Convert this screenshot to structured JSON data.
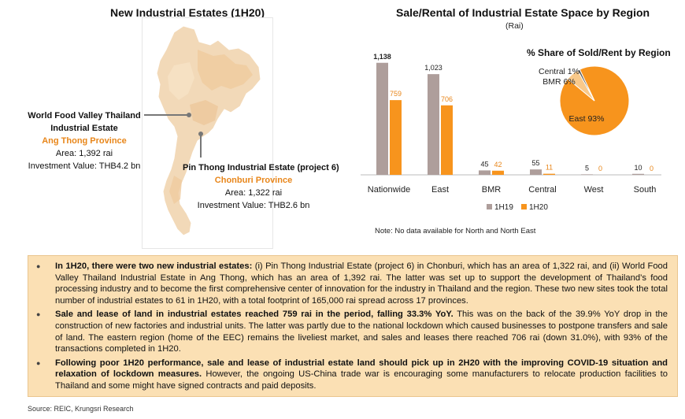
{
  "left_panel": {
    "title": "New Industrial Estates (1H20)",
    "estate1": {
      "name_line1": "World Food Valley Thailand",
      "name_line2": "Industrial Estate",
      "province": "Ang Thong Province",
      "area": "Area: 1,392 rai",
      "investment": "Investment Value: THB4.2 bn"
    },
    "estate2": {
      "name": "Pin Thong Industrial Estate (project 6)",
      "province": "Chonburi Province",
      "area": "Area: 1,322 rai",
      "investment": "Investment Value: THB2.6 bn"
    }
  },
  "chart_data": [
    {
      "type": "bar",
      "title": "Sale/Rental of Industrial Estate Space by Region",
      "subtitle": "(Rai)",
      "categories": [
        "Nationwide",
        "East",
        "BMR",
        "Central",
        "West",
        "South"
      ],
      "series": [
        {
          "name": "1H19",
          "values": [
            1138,
            1023,
            45,
            55,
            5,
            10
          ],
          "labels": [
            "1,138",
            "1,023",
            "45",
            "55",
            "5",
            "10"
          ],
          "color": "#AE9E9B"
        },
        {
          "name": "1H20",
          "values": [
            759,
            706,
            42,
            11,
            0,
            0
          ],
          "labels": [
            "759",
            "706",
            "42",
            "11",
            "0",
            "0"
          ],
          "color": "#F7941D"
        }
      ],
      "ylim": [
        0,
        1200
      ],
      "legend": "bottom",
      "grid": false,
      "note": "Note: No data available for North and North East"
    },
    {
      "type": "pie",
      "title": "% Share of Sold/Rent by Region",
      "slices": [
        {
          "label": "East 93%",
          "value": 93,
          "color": "#F7941D"
        },
        {
          "label": "BMR 6%",
          "value": 6,
          "color": "#F9C98A"
        },
        {
          "label": "Central 1%",
          "value": 1,
          "color": "#555555"
        }
      ]
    }
  ],
  "summary": {
    "bullets": [
      {
        "bold": "In 1H20, there were two new industrial estates:",
        "text": " (i) Pin Thong Industrial Estate (project 6) in Chonburi, which has an area of 1,322 rai, and (ii) World Food Valley Thailand Industrial Estate in Ang Thong, which has an area of 1,392 rai. The latter was set up to support the development of Thailand’s food processing industry and to become the first comprehensive center of innovation for the industry in Thailand and the region. These two new sites took the total number of industrial estates to 61 in 1H20, with a total footprint of 165,000 rai spread across 17 provinces."
      },
      {
        "bold": "Sale and lease of land in industrial estates reached 759 rai in the period, falling 33.3% YoY.",
        "text": " This was on the back of the 39.9% YoY drop in the construction of new factories and industrial units. The latter was partly due to the national lockdown which caused businesses to postpone transfers and sale of land. The eastern region (home of the EEC) remains the liveliest market, and sales and leases there reached 706 rai (down 31.0%), with 93% of the transactions completed in 1H20."
      },
      {
        "bold": "Following poor 1H20 performance, sale and lease of industrial estate land should pick up in 2H20 with the improving COVID-19 situation and relaxation of lockdown measures.",
        "text": " However, the ongoing US-China trade war is encouraging some manufacturers to relocate production facilities to Thailand and some might have signed contracts and paid deposits."
      }
    ]
  },
  "source": "Source: REIC, Krungsri Research"
}
